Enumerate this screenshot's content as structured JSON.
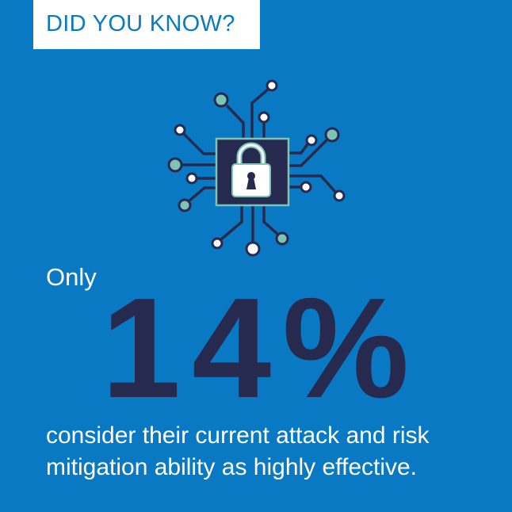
{
  "header": {
    "label": "DID YOU KNOW?"
  },
  "icon": {
    "name": "circuit-lock-icon"
  },
  "stat": {
    "prefix": "Only",
    "value": "14%",
    "line1": "consider their current attack and risk",
    "line2": "mitigation ability as highly effective."
  },
  "colors": {
    "background": "#0a79c4",
    "navy": "#272a4f",
    "teal": "#7cc4b5",
    "white": "#ffffff"
  }
}
